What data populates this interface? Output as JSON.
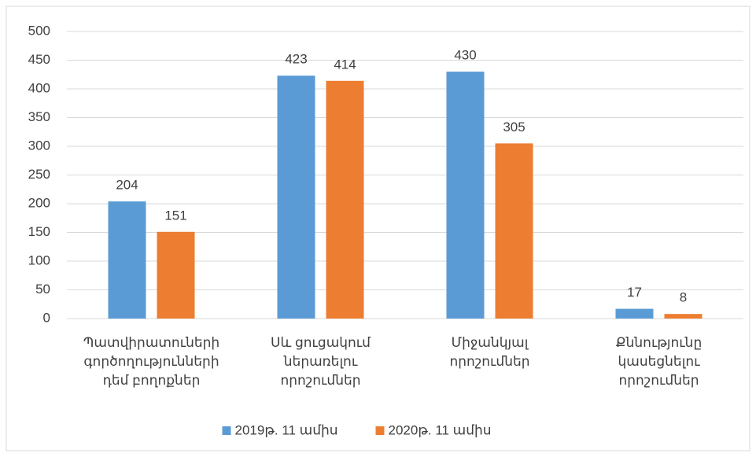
{
  "chart_data": {
    "type": "bar",
    "categories": [
      "Պատվիրատուների\nգործողությունների\nդեմ բողոքներ",
      "Սև ցուցակում\nներառելու\nորոշումներ",
      "Միջանկյալ\nորոշումներ",
      "Քննությունը\nկասեցնելու\nորոշումներ"
    ],
    "series": [
      {
        "name": "2019թ. 11 ամիս",
        "color": "#5b9bd5",
        "values": [
          204,
          423,
          430,
          17
        ]
      },
      {
        "name": "2020թ. 11 ամիս",
        "color": "#ed7d31",
        "values": [
          151,
          414,
          305,
          8
        ]
      }
    ],
    "ylim": [
      0,
      500
    ],
    "yticks": [
      0,
      50,
      100,
      150,
      200,
      250,
      300,
      350,
      400,
      450,
      500
    ],
    "grid": true,
    "legend": "bottom"
  }
}
